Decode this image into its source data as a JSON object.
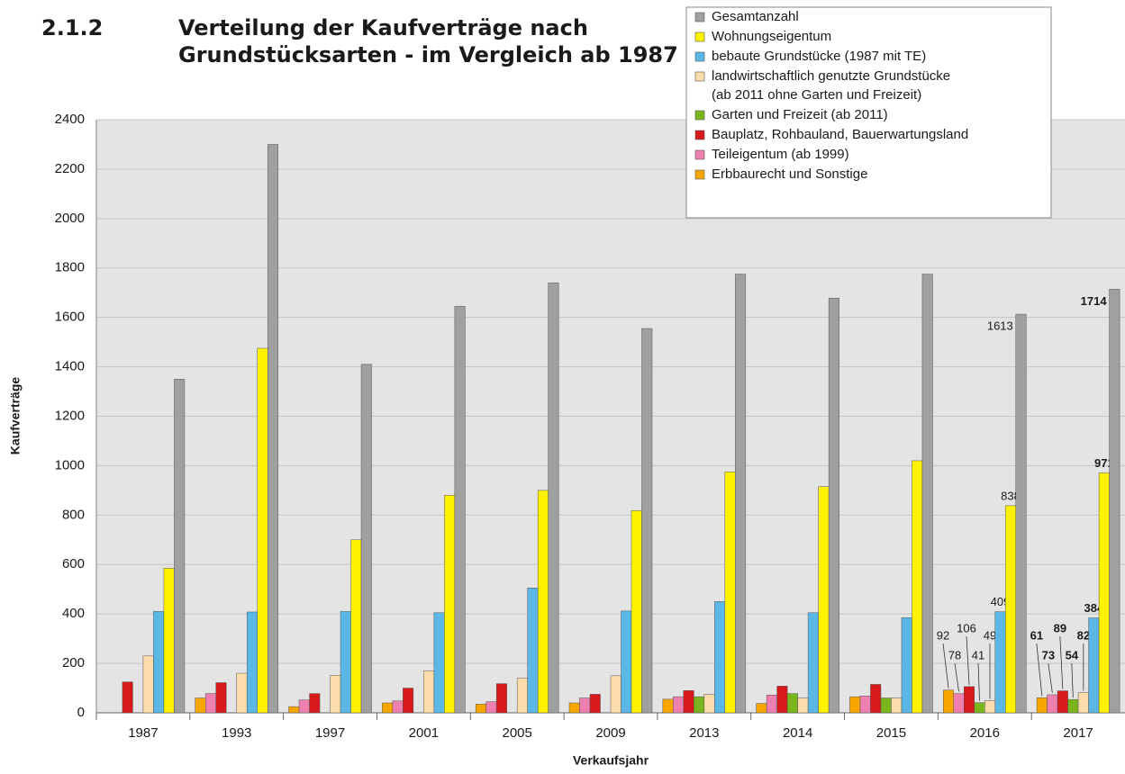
{
  "chart_data": {
    "type": "bar",
    "section": "2.1.2",
    "title": [
      "Verteilung der Kaufverträge nach",
      "Grundstücksarten - im Vergleich ab 1987"
    ],
    "y_label": "Kaufverträge",
    "x_label": "Verkaufsjahr",
    "categories": [
      "1987",
      "1993",
      "1997",
      "2001",
      "2005",
      "2009",
      "2013",
      "2014",
      "2015",
      "2016",
      "2017"
    ],
    "ylim": [
      0,
      2400
    ],
    "yticks": [
      0,
      200,
      400,
      600,
      800,
      1000,
      1200,
      1400,
      1600,
      1800,
      2000,
      2200,
      2400
    ],
    "grid": true,
    "legend": "upper right",
    "series": [
      {
        "name": "Erbbaurecht und Sonstige",
        "color": "#f7a600",
        "values": [
          null,
          60,
          25,
          40,
          35,
          40,
          55,
          38,
          65,
          92,
          61
        ],
        "value_labels": [
          null,
          null,
          null,
          null,
          null,
          null,
          null,
          null,
          null,
          "92",
          "61"
        ]
      },
      {
        "name": "Teileigentum (ab 1999)",
        "color": "#ee80b0",
        "values": [
          null,
          78,
          52,
          48,
          45,
          60,
          65,
          72,
          68,
          78,
          73
        ],
        "value_labels": [
          null,
          null,
          null,
          null,
          null,
          null,
          null,
          null,
          null,
          "78",
          "73"
        ]
      },
      {
        "name": "Bauplatz, Rohbauland, Bauerwartungsland",
        "color": "#d7191c",
        "values": [
          125,
          122,
          78,
          100,
          118,
          75,
          90,
          108,
          115,
          106,
          89
        ],
        "value_labels": [
          null,
          null,
          null,
          null,
          null,
          null,
          null,
          null,
          null,
          "106",
          "89"
        ]
      },
      {
        "name": "Garten und Freizeit (ab 2011)",
        "color": "#7ab51d",
        "values": [
          null,
          null,
          null,
          null,
          null,
          null,
          65,
          78,
          60,
          41,
          54
        ],
        "value_labels": [
          null,
          null,
          null,
          null,
          null,
          null,
          null,
          null,
          null,
          "41",
          "54"
        ]
      },
      {
        "name": "landwirtschaftlich genutzte Grundstücke\n(ab 2011 ohne Garten und Freizeit)",
        "color": "#fcdcaa",
        "values": [
          230,
          160,
          152,
          170,
          140,
          150,
          75,
          60,
          60,
          49,
          82
        ],
        "value_labels": [
          null,
          null,
          null,
          null,
          null,
          null,
          null,
          null,
          null,
          "49",
          "82"
        ]
      },
      {
        "name": "bebaute Grundstücke (1987 mit TE)",
        "color": "#5bb8e6",
        "values": [
          410,
          408,
          410,
          405,
          505,
          412,
          450,
          405,
          385,
          409,
          384
        ],
        "value_labels": [
          null,
          null,
          null,
          null,
          null,
          null,
          null,
          null,
          null,
          "409",
          "384"
        ]
      },
      {
        "name": "Wohnungseigentum",
        "color": "#fff200",
        "values": [
          585,
          1475,
          700,
          880,
          900,
          818,
          975,
          915,
          1020,
          838,
          971
        ],
        "value_labels": [
          null,
          null,
          null,
          null,
          null,
          null,
          null,
          null,
          null,
          "838",
          "971"
        ]
      },
      {
        "name": "Gesamtanzahl",
        "color": "#a0a0a0",
        "values": [
          1350,
          2300,
          1410,
          1645,
          1740,
          1555,
          1775,
          1678,
          1775,
          1613,
          1714
        ],
        "value_labels": [
          null,
          null,
          null,
          null,
          null,
          null,
          null,
          null,
          null,
          "1613",
          "1714"
        ]
      }
    ]
  }
}
